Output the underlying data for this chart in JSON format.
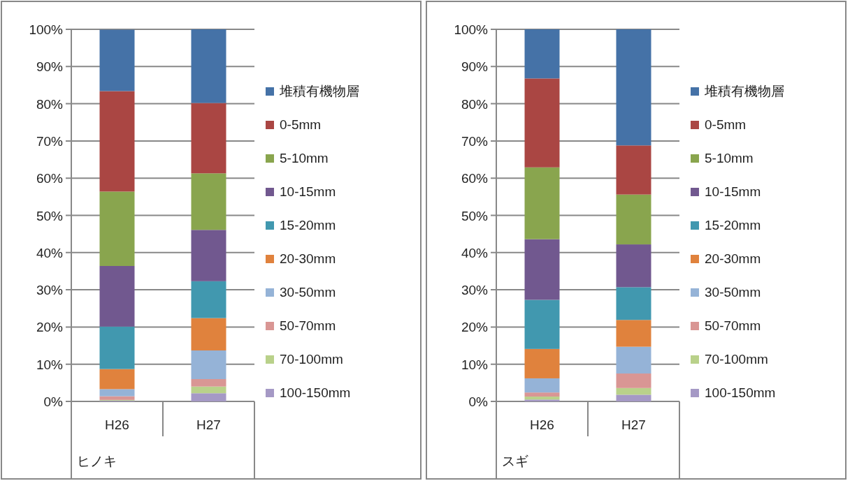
{
  "chart_data": [
    {
      "type": "bar",
      "stacked": true,
      "categories": [
        "H26",
        "H27"
      ],
      "xlabel": "ヒノキ",
      "ylim": [
        0,
        100
      ],
      "yticks": [
        {
          "value": 0,
          "label": "0%"
        },
        {
          "value": 10,
          "label": "10%"
        },
        {
          "value": 20,
          "label": "20%"
        },
        {
          "value": 30,
          "label": "30%"
        },
        {
          "value": 40,
          "label": "40%"
        },
        {
          "value": 50,
          "label": "50%"
        },
        {
          "value": 60,
          "label": "60%"
        },
        {
          "value": 70,
          "label": "70%"
        },
        {
          "value": 80,
          "label": "80%"
        },
        {
          "value": 90,
          "label": "90%"
        },
        {
          "value": 100,
          "label": "100%"
        }
      ],
      "grid": "y",
      "legend": "right",
      "series": [
        {
          "name": "100-150mm",
          "color": "#a599c5",
          "values": [
            0.2,
            2.2
          ]
        },
        {
          "name": "70-100mm",
          "color": "#b9d18a",
          "values": [
            0.2,
            1.8
          ]
        },
        {
          "name": "50-70mm",
          "color": "#d99694",
          "values": [
            1.0,
            2.0
          ]
        },
        {
          "name": "30-50mm",
          "color": "#95b3d7",
          "values": [
            1.9,
            7.7
          ]
        },
        {
          "name": "20-30mm",
          "color": "#e0823d",
          "values": [
            5.4,
            8.7
          ]
        },
        {
          "name": "15-20mm",
          "color": "#4198af",
          "values": [
            11.4,
            9.9
          ]
        },
        {
          "name": "10-15mm",
          "color": "#71588f",
          "values": [
            16.3,
            13.8
          ]
        },
        {
          "name": "5-10mm",
          "color": "#89a54e",
          "values": [
            20.0,
            15.2
          ]
        },
        {
          "name": "0-5mm",
          "color": "#aa4643",
          "values": [
            27.0,
            18.9
          ]
        },
        {
          "name": "堆積有機物層",
          "color": "#4572a7",
          "values": [
            16.5,
            19.8
          ]
        }
      ]
    },
    {
      "type": "bar",
      "stacked": true,
      "categories": [
        "H26",
        "H27"
      ],
      "xlabel": "スギ",
      "ylim": [
        0,
        100
      ],
      "yticks": [
        {
          "value": 0,
          "label": "0%"
        },
        {
          "value": 10,
          "label": "10%"
        },
        {
          "value": 20,
          "label": "20%"
        },
        {
          "value": 30,
          "label": "30%"
        },
        {
          "value": 40,
          "label": "40%"
        },
        {
          "value": 50,
          "label": "50%"
        },
        {
          "value": 60,
          "label": "60%"
        },
        {
          "value": 70,
          "label": "70%"
        },
        {
          "value": 80,
          "label": "80%"
        },
        {
          "value": 90,
          "label": "90%"
        },
        {
          "value": 100,
          "label": "100%"
        }
      ],
      "grid": "y",
      "legend": "right",
      "series": [
        {
          "name": "100-150mm",
          "color": "#a599c5",
          "values": [
            0.5,
            1.8
          ]
        },
        {
          "name": "70-100mm",
          "color": "#b9d18a",
          "values": [
            0.8,
            1.8
          ]
        },
        {
          "name": "50-70mm",
          "color": "#d99694",
          "values": [
            1.1,
            3.9
          ]
        },
        {
          "name": "30-50mm",
          "color": "#95b3d7",
          "values": [
            3.8,
            7.2
          ]
        },
        {
          "name": "20-30mm",
          "color": "#e0823d",
          "values": [
            7.9,
            7.2
          ]
        },
        {
          "name": "15-20mm",
          "color": "#4198af",
          "values": [
            13.2,
            8.8
          ]
        },
        {
          "name": "10-15mm",
          "color": "#71588f",
          "values": [
            16.3,
            11.5
          ]
        },
        {
          "name": "5-10mm",
          "color": "#89a54e",
          "values": [
            19.3,
            13.4
          ]
        },
        {
          "name": "0-5mm",
          "color": "#aa4643",
          "values": [
            23.9,
            13.2
          ]
        },
        {
          "name": "堆積有機物層",
          "color": "#4572a7",
          "values": [
            13.2,
            31.2
          ]
        }
      ]
    }
  ]
}
